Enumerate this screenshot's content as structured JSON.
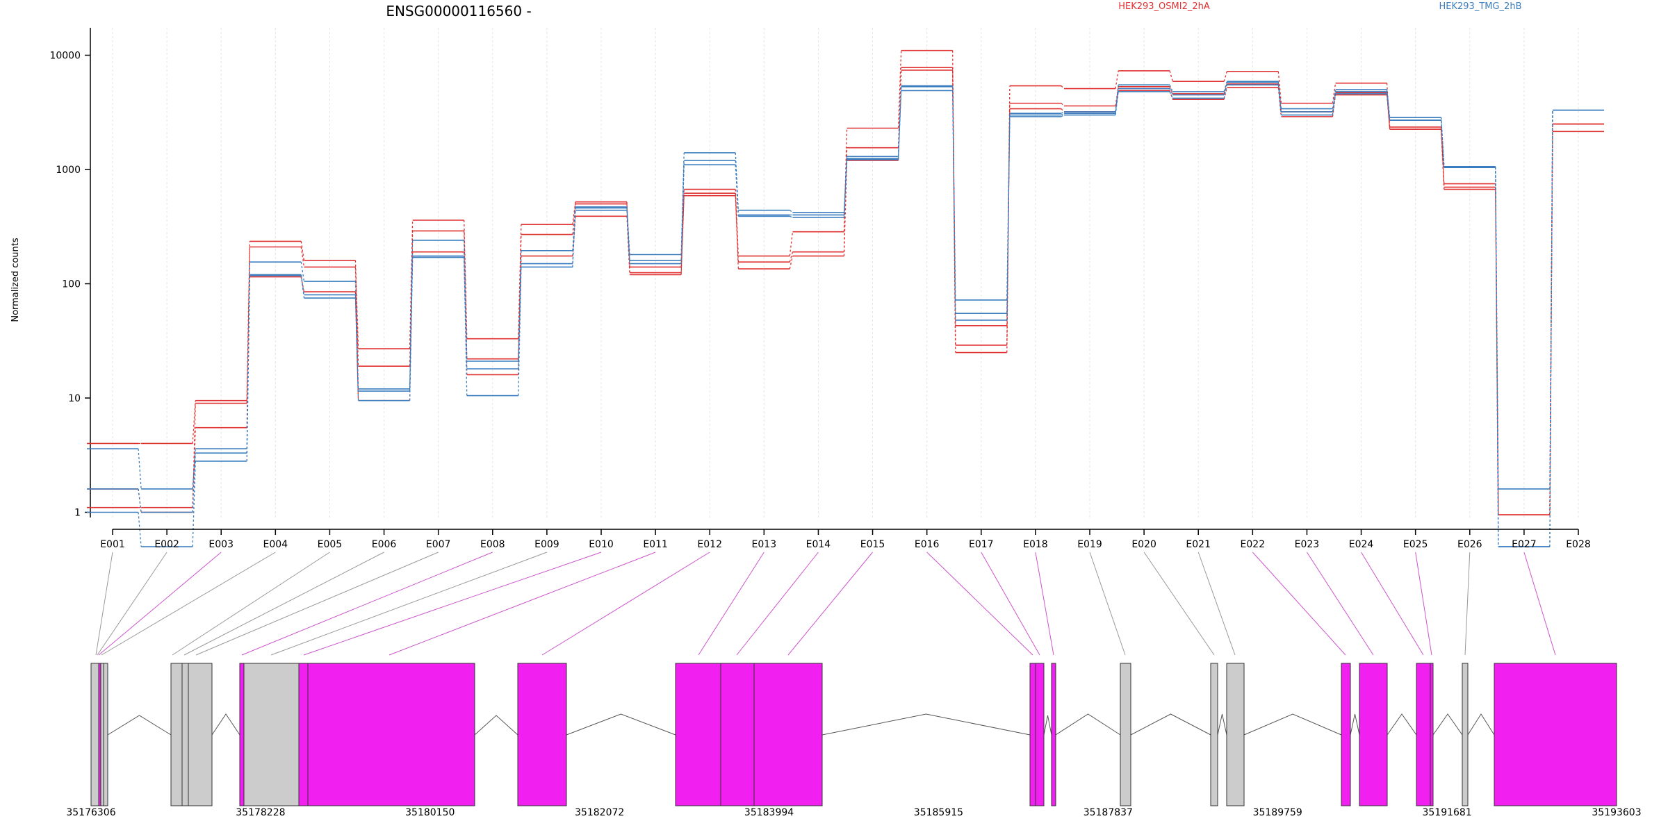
{
  "title": "ENSG00000116560 -",
  "ylabel": "Normalized counts",
  "legend": [
    {
      "name": "HEK293_OSMI2_2hA",
      "color": "#e03030"
    },
    {
      "name": "HEK293_TMG_2hB",
      "color": "#3a7dbf"
    }
  ],
  "colors": {
    "red": "#e03030",
    "blue": "#3a7dbf",
    "magenta": "#f11ff0",
    "gray": "#cccccc",
    "guide": "#cc55cc",
    "axis": "#000000"
  },
  "chart_data": {
    "type": "line",
    "y_scale": "log",
    "ylim": [
      0.5,
      15000
    ],
    "yticks": [
      "1",
      "10",
      "100",
      "1000",
      "10000"
    ],
    "grid": "vertical dotted lines at exon centers",
    "categories": [
      "E001",
      "E002",
      "E003",
      "E004",
      "E005",
      "E006",
      "E007",
      "E008",
      "E009",
      "E010",
      "E011",
      "E012",
      "E013",
      "E014",
      "E015",
      "E016",
      "E017",
      "E018",
      "E019",
      "E020",
      "E021",
      "E022",
      "E023",
      "E024",
      "E025",
      "E026",
      "E027",
      "E028"
    ],
    "series": [
      {
        "group": "HEK293_OSMI2_2hA",
        "values": [
          4.0,
          4.0,
          9.5,
          235,
          160,
          27,
          360,
          33,
          330,
          520,
          140,
          670,
          175,
          285,
          2300,
          11000,
          29,
          5400,
          5100,
          7300,
          5900,
          7200,
          3800,
          5700,
          2350,
          750,
          0.95,
          2500
        ]
      },
      {
        "group": "HEK293_OSMI2_2hA",
        "values": [
          1.1,
          1.1,
          5.5,
          210,
          140,
          19,
          290,
          22,
          270,
          500,
          125,
          620,
          155,
          190,
          1550,
          7800,
          25,
          3800,
          3600,
          5300,
          4600,
          5600,
          3200,
          4700,
          2250,
          700,
          0.95,
          2500
        ]
      },
      {
        "group": "HEK293_OSMI2_2hA",
        "values": [
          1.6,
          1.0,
          9.0,
          115,
          85,
          9.5,
          190,
          16,
          175,
          390,
          120,
          590,
          135,
          175,
          1200,
          7400,
          43,
          3400,
          3200,
          4900,
          4100,
          5200,
          2900,
          4500,
          2250,
          670,
          0.95,
          2150
        ]
      },
      {
        "group": "HEK293_TMG_2hB",
        "values": [
          3.6,
          1.6,
          3.6,
          155,
          105,
          12,
          240,
          21,
          195,
          470,
          180,
          1400,
          440,
          420,
          1300,
          5400,
          72,
          3100,
          3200,
          5500,
          4800,
          5900,
          3400,
          5000,
          2850,
          1060,
          1.6,
          3300
        ]
      },
      {
        "group": "HEK293_TMG_2hB",
        "values": [
          1.0,
          0.5,
          2.8,
          120,
          80,
          11.5,
          175,
          10.5,
          140,
          460,
          160,
          1200,
          400,
          400,
          1220,
          5300,
          55,
          3000,
          3100,
          5100,
          4500,
          5800,
          3200,
          4800,
          2700,
          1050,
          0.5,
          3300
        ]
      },
      {
        "group": "HEK293_TMG_2hB",
        "values": [
          1.6,
          1.0,
          3.3,
          118,
          75,
          9.5,
          170,
          18,
          150,
          440,
          150,
          1100,
          390,
          380,
          1250,
          4900,
          48,
          2900,
          3000,
          4800,
          4200,
          5500,
          3000,
          4600,
          2700,
          1040,
          0.5,
          3300
        ]
      }
    ],
    "gene_model": {
      "axis_ticks": [
        "35176306",
        "35178228",
        "35180150",
        "35182072",
        "35183994",
        "35185915",
        "35187837",
        "35189759",
        "35191681",
        "35193603"
      ],
      "range": [
        35176306,
        35193603
      ]
    }
  }
}
